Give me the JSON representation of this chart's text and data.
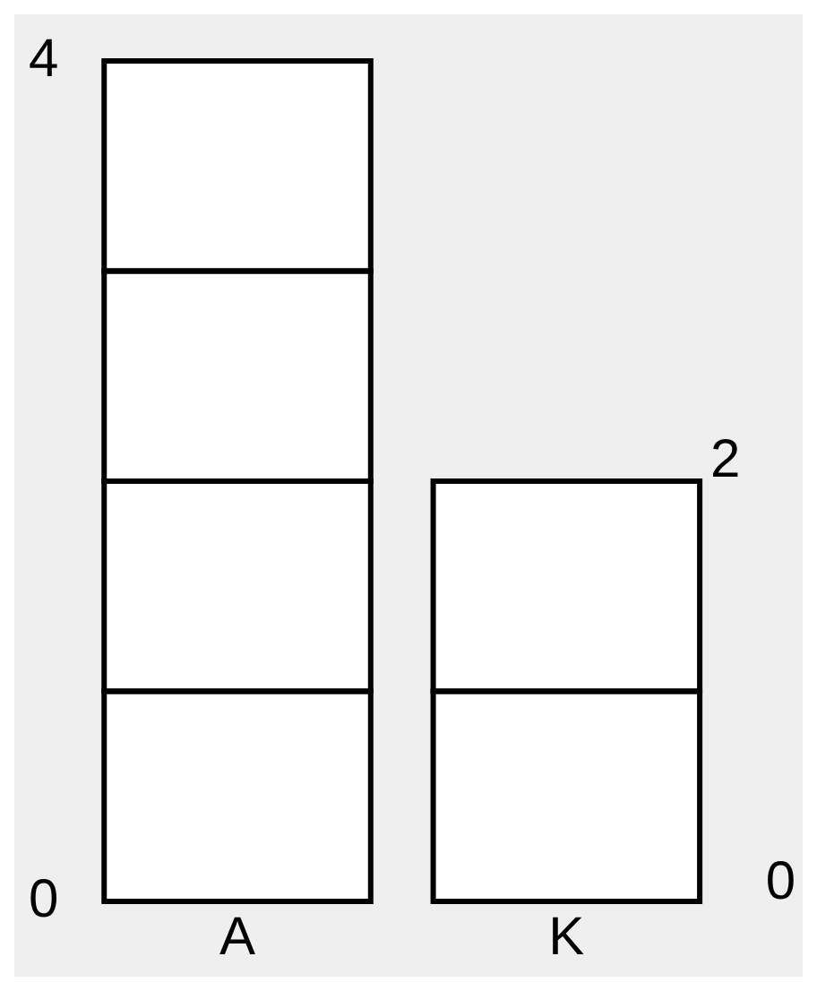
{
  "chart_data": {
    "type": "bar",
    "categories": [
      "A",
      "K"
    ],
    "stacked": true,
    "series": [
      {
        "color": "#ffffff",
        "values": [
          1,
          1
        ]
      },
      {
        "color": "#ffffff",
        "values": [
          1,
          1
        ]
      },
      {
        "color": "#ffffff",
        "values": [
          1,
          null
        ]
      },
      {
        "color": "#ffffff",
        "values": [
          1,
          null
        ]
      }
    ],
    "totals": [
      null,
      "2"
    ],
    "ylim": [
      0,
      4
    ],
    "yticks": [
      0,
      4
    ],
    "annotations": [
      "0"
    ],
    "grid": false,
    "legend": false
  }
}
